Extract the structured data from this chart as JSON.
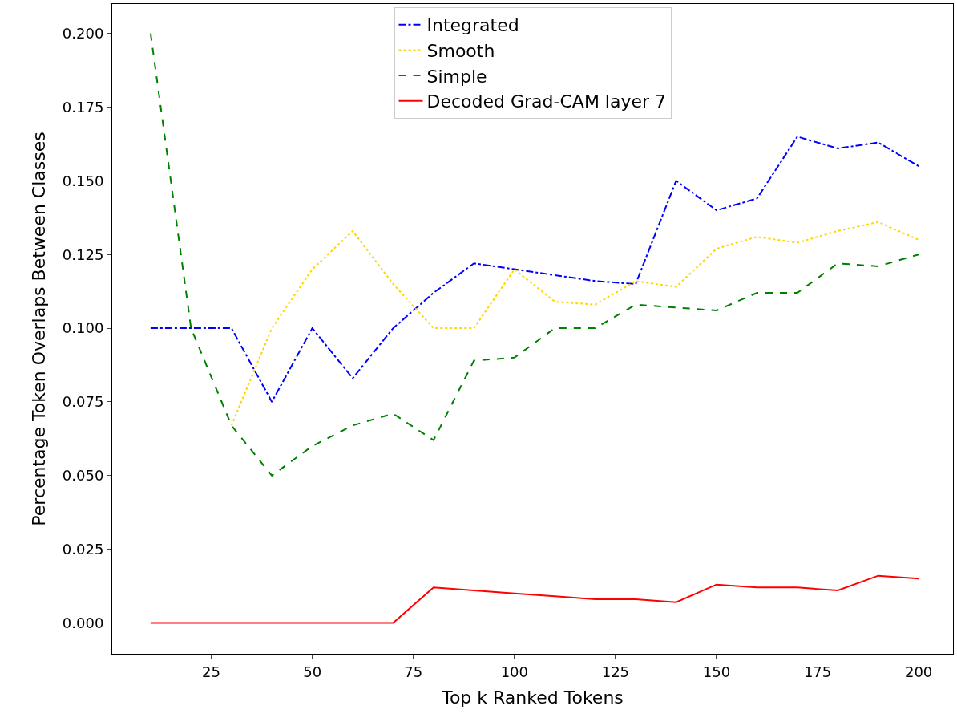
{
  "chart_data": {
    "type": "line",
    "xlabel": "Top k Ranked Tokens",
    "ylabel": "Percentage Token Overlaps Between Classes",
    "x": [
      10,
      20,
      30,
      40,
      50,
      60,
      70,
      80,
      90,
      100,
      110,
      120,
      130,
      140,
      150,
      160,
      170,
      180,
      190,
      200
    ],
    "series": [
      {
        "name": "Integrated",
        "color": "#0000ff",
        "line_style": "dashdot",
        "values": [
          0.1,
          0.1,
          0.1,
          0.075,
          0.1,
          0.083,
          0.1,
          0.112,
          0.122,
          0.12,
          0.118,
          0.116,
          0.115,
          0.15,
          0.14,
          0.144,
          0.165,
          0.161,
          0.163,
          0.155
        ]
      },
      {
        "name": "Smooth",
        "color": "#ffd700",
        "line_style": "dotted",
        "values": [
          null,
          null,
          0.067,
          0.1,
          0.12,
          0.133,
          0.115,
          0.1,
          0.1,
          0.12,
          0.109,
          0.108,
          0.116,
          0.114,
          0.127,
          0.131,
          0.129,
          0.133,
          0.136,
          0.13
        ]
      },
      {
        "name": "Simple",
        "color": "#008000",
        "line_style": "dashed",
        "values": [
          0.2,
          0.1,
          0.067,
          0.05,
          0.06,
          0.067,
          0.071,
          0.062,
          0.089,
          0.09,
          0.1,
          0.1,
          0.108,
          0.107,
          0.106,
          0.112,
          0.112,
          0.122,
          0.121,
          0.125
        ]
      },
      {
        "name": "Decoded Grad-CAM layer 7",
        "color": "#ff0000",
        "line_style": "solid",
        "values": [
          0,
          0,
          0,
          0,
          0,
          0,
          0,
          0.012,
          0.011,
          0.01,
          0.009,
          0.008,
          0.008,
          0.007,
          0.013,
          0.012,
          0.012,
          0.011,
          0.016,
          0.015
        ]
      }
    ],
    "xlim": [
      0.5,
      208.5
    ],
    "ylim": [
      -0.0105,
      0.21
    ],
    "xticks": [
      25,
      50,
      75,
      100,
      125,
      150,
      175,
      200
    ],
    "yticks": [
      {
        "value": 0,
        "label": "0.000"
      },
      {
        "value": 0.025,
        "label": "0.025"
      },
      {
        "value": 0.05,
        "label": "0.050"
      },
      {
        "value": 0.075,
        "label": "0.075"
      },
      {
        "value": 0.1,
        "label": "0.100"
      },
      {
        "value": 0.125,
        "label": "0.125"
      },
      {
        "value": 0.15,
        "label": "0.150"
      },
      {
        "value": 0.175,
        "label": "0.175"
      },
      {
        "value": 0.2,
        "label": "0.200"
      }
    ],
    "legend": "top",
    "marker": "none"
  }
}
